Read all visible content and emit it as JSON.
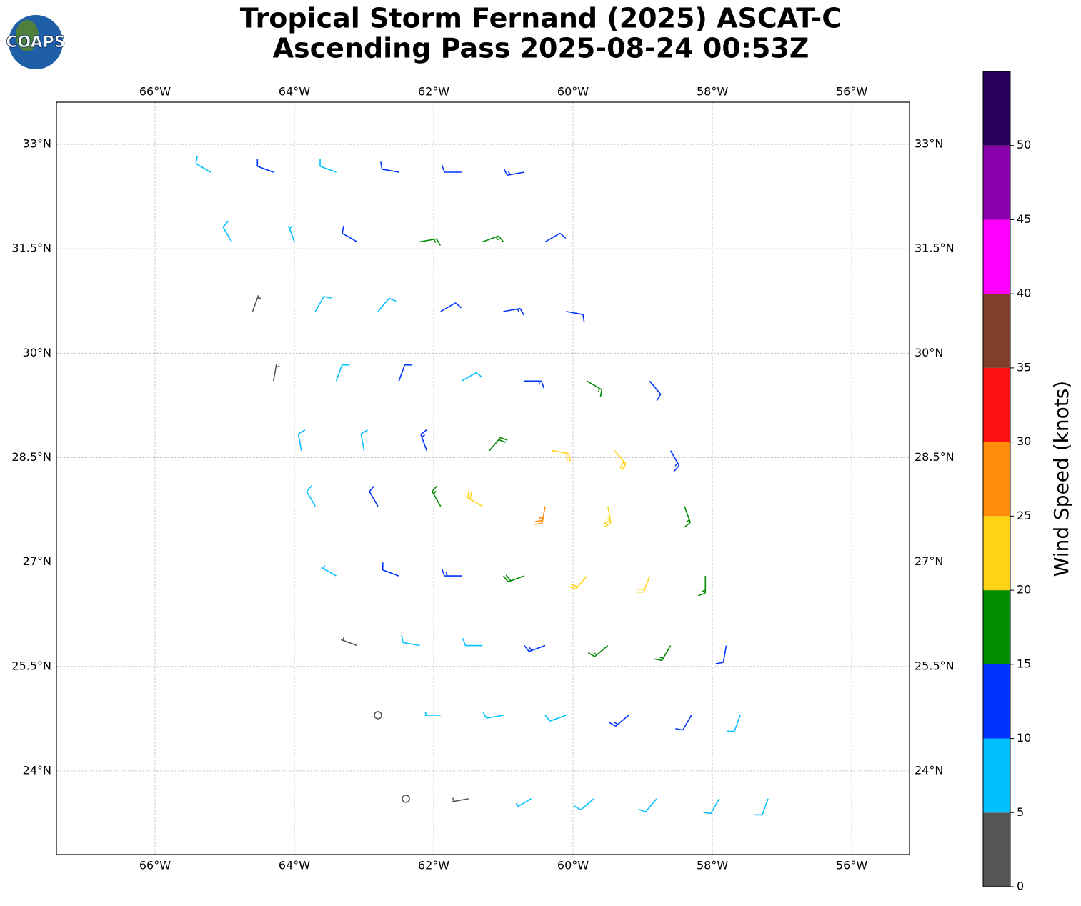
{
  "chart_data": {
    "type": "barbs",
    "title": "Tropical Storm Fernand (2025) ASCAT-C",
    "subtitle": "Ascending Pass 2025-08-24 00:53Z",
    "logo": "COAPS",
    "xlim": [
      -67.415,
      -55.17
    ],
    "ylim": [
      22.798,
      33.606
    ],
    "xticks": [
      {
        "value": -66,
        "label": "66°W"
      },
      {
        "value": -64,
        "label": "64°W"
      },
      {
        "value": -62,
        "label": "62°W"
      },
      {
        "value": -60,
        "label": "60°W"
      },
      {
        "value": -58,
        "label": "58°W"
      },
      {
        "value": -56,
        "label": "56°W"
      }
    ],
    "yticks": [
      {
        "value": 33,
        "label": "33°N"
      },
      {
        "value": 31.5,
        "label": "31.5°N"
      },
      {
        "value": 30,
        "label": "30°N"
      },
      {
        "value": 28.5,
        "label": "28.5°N"
      },
      {
        "value": 27,
        "label": "27°N"
      },
      {
        "value": 25.5,
        "label": "25.5°N"
      },
      {
        "value": 24,
        "label": "24°N"
      }
    ],
    "grid": true,
    "barbs": {
      "lon": [
        -65.2,
        -64.3,
        -63.4,
        -62.5,
        -61.6,
        -60.7,
        -64.9,
        -64.0,
        -63.1,
        -62.2,
        -61.3,
        -60.4,
        -64.6,
        -63.7,
        -62.8,
        -61.9,
        -61.0,
        -60.1,
        -64.3,
        -63.4,
        -62.5,
        -61.6,
        -60.7,
        -59.8,
        -58.9,
        -63.9,
        -63.0,
        -62.1,
        -61.2,
        -60.3,
        -59.4,
        -58.6,
        -63.7,
        -62.8,
        -61.9,
        -61.3,
        -60.4,
        -59.5,
        -58.4,
        -63.4,
        -62.5,
        -61.6,
        -60.7,
        -59.8,
        -58.9,
        -58.1,
        -63.1,
        -62.2,
        -61.3,
        -60.4,
        -59.5,
        -58.6,
        -57.8,
        -62.8,
        -61.9,
        -61.0,
        -60.1,
        -59.2,
        -58.3,
        -57.6,
        -62.4,
        -61.5,
        -60.6,
        -59.7,
        -58.8,
        -57.9,
        -57.2
      ],
      "lat": [
        32.6,
        32.6,
        32.6,
        32.6,
        32.6,
        32.6,
        31.6,
        31.6,
        31.6,
        31.6,
        31.6,
        31.6,
        30.6,
        30.6,
        30.6,
        30.6,
        30.6,
        30.6,
        29.6,
        29.6,
        29.6,
        29.6,
        29.6,
        29.6,
        29.6,
        28.6,
        28.6,
        28.6,
        28.6,
        28.6,
        28.6,
        28.6,
        27.8,
        27.8,
        27.8,
        27.8,
        27.8,
        27.8,
        27.8,
        26.8,
        26.8,
        26.8,
        26.8,
        26.8,
        26.8,
        26.8,
        25.8,
        25.8,
        25.8,
        25.8,
        25.8,
        25.8,
        25.8,
        24.8,
        24.8,
        24.8,
        24.8,
        24.8,
        24.8,
        24.8,
        23.6,
        23.6,
        23.6,
        23.6,
        23.6,
        23.6,
        23.6
      ],
      "speed": [
        8,
        11,
        9,
        11,
        11,
        13,
        9,
        7,
        10,
        16,
        17,
        12,
        3,
        8,
        9,
        12,
        13,
        11,
        4,
        8,
        11,
        9,
        13,
        17,
        12,
        8,
        9,
        13,
        19,
        22,
        21,
        14,
        9,
        11,
        17,
        21,
        27,
        23,
        17,
        7,
        11,
        13,
        19,
        21,
        22,
        16,
        3,
        8,
        9,
        13,
        17,
        16,
        12,
        2,
        6,
        8,
        9,
        13,
        11,
        9,
        2,
        3,
        7,
        8,
        9,
        8,
        8
      ],
      "direction": [
        300,
        290,
        290,
        280,
        270,
        260,
        330,
        340,
        300,
        80,
        70,
        60,
        20,
        30,
        40,
        60,
        80,
        100,
        10,
        20,
        20,
        60,
        90,
        120,
        140,
        350,
        350,
        340,
        40,
        100,
        140,
        150,
        330,
        330,
        330,
        300,
        190,
        170,
        160,
        300,
        290,
        270,
        250,
        220,
        200,
        180,
        290,
        280,
        270,
        250,
        230,
        210,
        190,
        280,
        270,
        260,
        250,
        230,
        210,
        200,
        270,
        260,
        240,
        230,
        220,
        210,
        200
      ]
    },
    "colorbar": {
      "label": "Wind Speed (knots)",
      "lim": [
        0,
        55
      ],
      "bounds": [
        0,
        5,
        10,
        15,
        20,
        25,
        30,
        35,
        40,
        45,
        50,
        55
      ],
      "colors": [
        "#555555",
        "#00bfff",
        "#0033ff",
        "#008c00",
        "#ffd416",
        "#ff8c0a",
        "#ff1010",
        "#7f3f2a",
        "#ff00ff",
        "#8800aa",
        "#2a005e"
      ],
      "ticks": [
        0,
        5,
        10,
        15,
        20,
        25,
        30,
        35,
        40,
        45,
        50
      ]
    }
  }
}
